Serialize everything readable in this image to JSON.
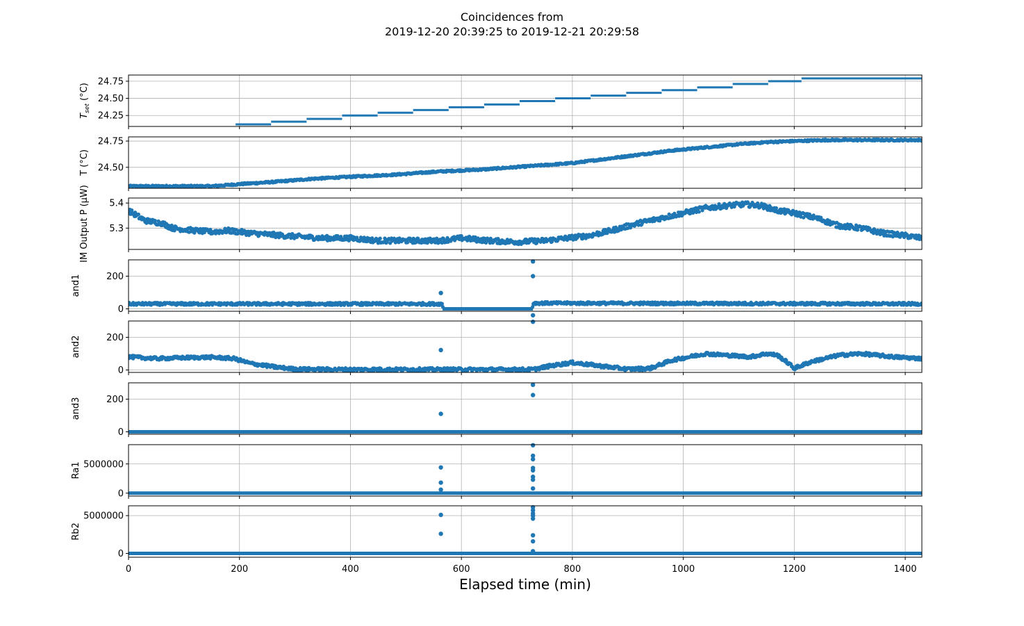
{
  "figure": {
    "title_line1": "Coincidences from",
    "title_line2": "2019-12-20 20:39:25 to 2019-12-21 20:29:58",
    "xlabel": "Elapsed time (min)"
  },
  "chart_data": {
    "type": "scatter",
    "shared_x": {
      "label": "Elapsed time (min)",
      "xlim": [
        0,
        1430
      ],
      "ticks": [
        0,
        200,
        400,
        600,
        800,
        1000,
        1200,
        1400
      ]
    },
    "grid": true,
    "color": "#1f77b4",
    "panels": [
      {
        "id": "tset",
        "ylabel_main": "T",
        "ylabel_sub": "set",
        "ylabel_unit": " (°C)",
        "ylim": [
          24.09,
          24.84
        ],
        "yticks": [
          24.25,
          24.5,
          24.75
        ],
        "ytick_labels": [
          "24.25",
          "24.50",
          "24.75"
        ],
        "style": "steps",
        "steps": [
          [
            0,
            193,
            24.08
          ],
          [
            193,
            257,
            24.12
          ],
          [
            257,
            321,
            24.16
          ],
          [
            321,
            385,
            24.2
          ],
          [
            385,
            449,
            24.25
          ],
          [
            449,
            513,
            24.29
          ],
          [
            513,
            577,
            24.33
          ],
          [
            577,
            641,
            24.37
          ],
          [
            641,
            705,
            24.41
          ],
          [
            705,
            769,
            24.46
          ],
          [
            769,
            833,
            24.5
          ],
          [
            833,
            897,
            24.54
          ],
          [
            897,
            961,
            24.58
          ],
          [
            961,
            1025,
            24.62
          ],
          [
            1025,
            1089,
            24.66
          ],
          [
            1089,
            1153,
            24.71
          ],
          [
            1153,
            1213,
            24.75
          ],
          [
            1213,
            1430,
            24.79
          ]
        ]
      },
      {
        "id": "temp",
        "ylabel": "T (°C)",
        "ylim": [
          24.3,
          24.79
        ],
        "yticks": [
          24.5,
          24.75
        ],
        "ytick_labels": [
          "24.50",
          "24.75"
        ],
        "style": "dense",
        "x": [
          0,
          100,
          150,
          200,
          260,
          330,
          400,
          480,
          560,
          640,
          720,
          800,
          860,
          920,
          980,
          1040,
          1100,
          1150,
          1200,
          1260,
          1320,
          1380,
          1430
        ],
        "y": [
          24.32,
          24.32,
          24.32,
          24.34,
          24.36,
          24.39,
          24.41,
          24.43,
          24.46,
          24.48,
          24.51,
          24.54,
          24.58,
          24.62,
          24.66,
          24.69,
          24.72,
          24.74,
          24.75,
          24.76,
          24.76,
          24.76,
          24.76
        ],
        "band": 0.008
      },
      {
        "id": "power",
        "ylabel": "IM Output P (μW)",
        "ylim": [
          5.215,
          5.42
        ],
        "yticks": [
          5.3,
          5.4
        ],
        "ytick_labels": [
          "5.3",
          "5.4"
        ],
        "style": "dense",
        "x": [
          0,
          30,
          60,
          80,
          120,
          150,
          180,
          220,
          280,
          350,
          400,
          450,
          500,
          560,
          600,
          650,
          700,
          750,
          790,
          830,
          870,
          920,
          960,
          1000,
          1040,
          1080,
          1110,
          1140,
          1170,
          1200,
          1240,
          1280,
          1320,
          1360,
          1400,
          1430
        ],
        "y": [
          5.37,
          5.33,
          5.32,
          5.3,
          5.29,
          5.285,
          5.29,
          5.28,
          5.27,
          5.26,
          5.26,
          5.25,
          5.25,
          5.25,
          5.26,
          5.25,
          5.245,
          5.25,
          5.26,
          5.27,
          5.29,
          5.32,
          5.34,
          5.36,
          5.38,
          5.39,
          5.395,
          5.39,
          5.37,
          5.36,
          5.34,
          5.31,
          5.3,
          5.28,
          5.27,
          5.26
        ],
        "band": 0.01
      },
      {
        "id": "and1",
        "ylabel": "and1",
        "ylim": [
          -15,
          300
        ],
        "yticks": [
          0,
          200
        ],
        "ytick_labels": [
          "0",
          "200"
        ],
        "style": "dense",
        "x": [
          0,
          560,
          566,
          567,
          728,
          729,
          730,
          1430
        ],
        "y": [
          30,
          30,
          30,
          0,
          0,
          30,
          35,
          30
        ],
        "band": 8,
        "gaps": [
          [
            567,
            728
          ]
        ],
        "zero_segments": [
          [
            566,
            729
          ]
        ],
        "outliers": [
          [
            563,
            97
          ],
          [
            729,
            200
          ],
          [
            729,
            290
          ]
        ]
      },
      {
        "id": "and2",
        "ylabel": "and2",
        "ylim": [
          -15,
          300
        ],
        "yticks": [
          0,
          200
        ],
        "ytick_labels": [
          "0",
          "200"
        ],
        "style": "dense",
        "x": [
          0,
          50,
          100,
          150,
          190,
          220,
          260,
          300,
          400,
          500,
          565,
          729,
          760,
          800,
          850,
          900,
          940,
          980,
          1040,
          1080,
          1120,
          1150,
          1170,
          1190,
          1200,
          1230,
          1280,
          1320,
          1380,
          1430
        ],
        "y": [
          80,
          70,
          75,
          78,
          70,
          40,
          20,
          5,
          3,
          3,
          3,
          3,
          25,
          45,
          25,
          5,
          10,
          60,
          100,
          90,
          80,
          100,
          90,
          40,
          10,
          50,
          90,
          100,
          80,
          70
        ],
        "band": 10,
        "gaps": [],
        "zero_segments": [],
        "outliers": [
          [
            563,
            122
          ],
          [
            729,
            295
          ],
          [
            729,
            335
          ]
        ]
      },
      {
        "id": "and3",
        "ylabel": "and3",
        "ylim": [
          -15,
          300
        ],
        "yticks": [
          0,
          200
        ],
        "ytick_labels": [
          "0",
          "200"
        ],
        "style": "flat",
        "baseline": 0,
        "outliers": [
          [
            563,
            110
          ],
          [
            729,
            225
          ],
          [
            729,
            288
          ]
        ]
      },
      {
        "id": "ra1",
        "ylabel": "Ra1",
        "ylim": [
          -500000,
          8300000
        ],
        "yticks": [
          0,
          5000000
        ],
        "ytick_labels": [
          "0",
          "5000000"
        ],
        "style": "flat",
        "baseline": 0,
        "outliers": [
          [
            563,
            4400000
          ],
          [
            563,
            1800000
          ],
          [
            563,
            600000
          ],
          [
            729,
            8200000
          ],
          [
            729,
            6400000
          ],
          [
            729,
            5800000
          ],
          [
            729,
            4300000
          ],
          [
            729,
            3900000
          ],
          [
            729,
            2800000
          ],
          [
            729,
            2300000
          ],
          [
            729,
            800000
          ]
        ]
      },
      {
        "id": "rb2",
        "ylabel": "Rb2",
        "ylim": [
          -500000,
          6300000
        ],
        "yticks": [
          0,
          5000000
        ],
        "ytick_labels": [
          "0",
          "5000000"
        ],
        "style": "flat",
        "baseline": 0,
        "outliers": [
          [
            563,
            5100000
          ],
          [
            563,
            2600000
          ],
          [
            729,
            6100000
          ],
          [
            729,
            5700000
          ],
          [
            729,
            5300000
          ],
          [
            729,
            5000000
          ],
          [
            729,
            4600000
          ],
          [
            729,
            2400000
          ],
          [
            729,
            1600000
          ],
          [
            729,
            300000
          ]
        ]
      }
    ]
  }
}
